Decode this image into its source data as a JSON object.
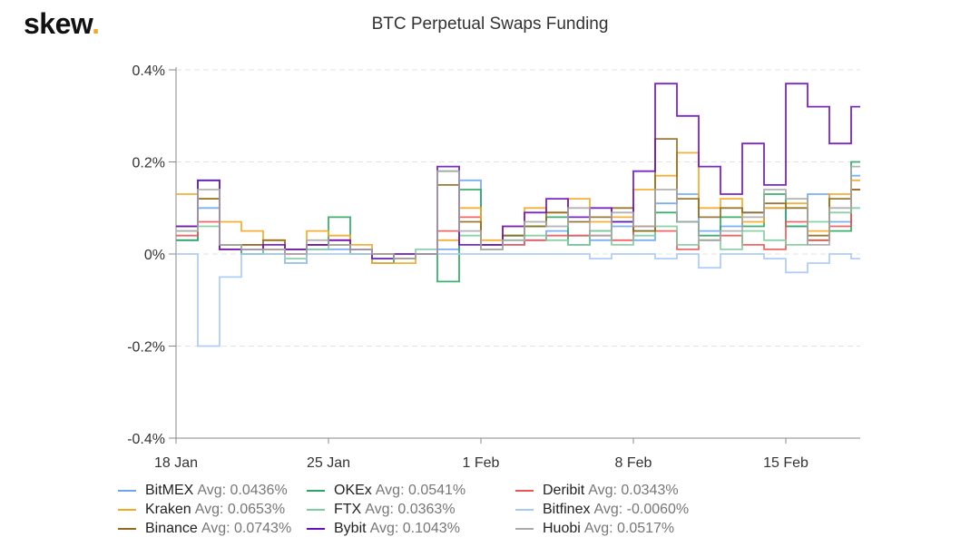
{
  "logo": {
    "text": "skew",
    "dot": "."
  },
  "chart_data": {
    "type": "line",
    "step": true,
    "title": "BTC Perpetual Swaps Funding",
    "xlabel": "",
    "ylabel": "",
    "ylim": [
      -0.4,
      0.4
    ],
    "yticks": [
      -0.4,
      -0.2,
      0,
      0.2,
      0.4
    ],
    "ytick_labels": [
      "-0.4%",
      "-0.2%",
      "0%",
      "0.2%",
      "0.4%"
    ],
    "xtick_labels": [
      "18 Jan",
      "25 Jan",
      "1 Feb",
      "8 Feb",
      "15 Feb"
    ],
    "xtick_index": [
      0,
      7,
      14,
      21,
      28
    ],
    "grid": true,
    "legend_placement": "bottom",
    "x": [
      "18 Jan",
      "19 Jan",
      "20 Jan",
      "21 Jan",
      "22 Jan",
      "23 Jan",
      "24 Jan",
      "25 Jan",
      "26 Jan",
      "27 Jan",
      "28 Jan",
      "29 Jan",
      "30 Jan",
      "31 Jan",
      "1 Feb",
      "2 Feb",
      "3 Feb",
      "4 Feb",
      "5 Feb",
      "6 Feb",
      "7 Feb",
      "8 Feb",
      "9 Feb",
      "10 Feb",
      "11 Feb",
      "12 Feb",
      "13 Feb",
      "14 Feb",
      "15 Feb",
      "16 Feb",
      "17 Feb",
      "18 Feb"
    ],
    "series": [
      {
        "name": "BitMEX",
        "avg": "Avg: 0.0436%",
        "color": "#6ea6f5",
        "values": [
          0.03,
          0.1,
          0.01,
          0.01,
          0.01,
          0.01,
          0.01,
          0.01,
          0.01,
          0.0,
          -0.01,
          0.0,
          0.01,
          0.16,
          0.01,
          0.02,
          0.03,
          0.05,
          0.04,
          0.03,
          0.06,
          0.03,
          0.11,
          0.13,
          0.05,
          0.06,
          0.09,
          0.1,
          0.06,
          0.13,
          0.07,
          0.17
        ]
      },
      {
        "name": "OKEx",
        "avg": "Avg: 0.0541%",
        "color": "#2aa660",
        "values": [
          0.03,
          0.16,
          0.02,
          0.0,
          0.01,
          -0.02,
          0.02,
          0.08,
          0.0,
          -0.02,
          -0.01,
          0.0,
          -0.06,
          0.14,
          0.02,
          0.04,
          0.06,
          0.08,
          0.02,
          0.05,
          0.07,
          0.05,
          0.09,
          0.07,
          0.04,
          0.08,
          0.06,
          0.13,
          0.06,
          0.03,
          0.05,
          0.2
        ]
      },
      {
        "name": "Deribit",
        "avg": "Avg: 0.0343%",
        "color": "#f05555",
        "values": [
          0.04,
          0.07,
          0.01,
          0.02,
          0.01,
          0.0,
          0.02,
          0.03,
          0.0,
          0.0,
          -0.01,
          0.0,
          0.05,
          0.08,
          0.01,
          0.02,
          0.03,
          0.04,
          0.04,
          0.04,
          0.03,
          0.06,
          0.05,
          0.01,
          0.03,
          0.04,
          0.02,
          0.01,
          0.07,
          0.03,
          0.06,
          0.14
        ]
      },
      {
        "name": "Kraken",
        "avg": "Avg: 0.0653%",
        "color": "#f5a623",
        "values": [
          0.13,
          0.12,
          0.07,
          0.05,
          0.03,
          0.01,
          0.05,
          0.04,
          0.02,
          -0.02,
          -0.02,
          0.0,
          0.03,
          0.1,
          0.03,
          0.06,
          0.1,
          0.09,
          0.12,
          0.07,
          0.08,
          0.14,
          0.17,
          0.22,
          0.1,
          0.12,
          0.07,
          0.1,
          0.11,
          0.05,
          0.13,
          0.16
        ]
      },
      {
        "name": "FTX",
        "avg": "Avg: 0.0363%",
        "color": "#7fcca0",
        "values": [
          0.05,
          0.06,
          0.02,
          0.01,
          0.0,
          -0.01,
          0.01,
          0.02,
          0.0,
          -0.01,
          -0.01,
          0.01,
          0.18,
          0.04,
          0.01,
          0.03,
          0.04,
          0.03,
          0.02,
          0.05,
          0.02,
          0.04,
          0.06,
          0.02,
          0.03,
          0.01,
          0.05,
          0.03,
          0.02,
          0.07,
          0.09,
          0.1
        ]
      },
      {
        "name": "Bitfinex",
        "avg": "Avg: -0.0060%",
        "color": "#a8c8f8",
        "values": [
          0.0,
          -0.2,
          -0.05,
          0.0,
          0.0,
          -0.02,
          0.0,
          0.0,
          0.0,
          0.0,
          0.0,
          0.0,
          0.0,
          0.0,
          0.0,
          0.0,
          0.0,
          0.0,
          0.0,
          -0.01,
          0.0,
          0.0,
          -0.01,
          0.0,
          -0.03,
          0.0,
          0.0,
          -0.01,
          -0.04,
          -0.02,
          0.0,
          -0.01
        ]
      },
      {
        "name": "Binance",
        "avg": "Avg: 0.0743%",
        "color": "#8f6a1f",
        "values": [
          0.06,
          0.12,
          0.02,
          0.02,
          0.03,
          0.01,
          0.02,
          0.02,
          0.01,
          0.0,
          -0.01,
          0.0,
          0.15,
          0.07,
          0.02,
          0.04,
          0.06,
          0.09,
          0.07,
          0.08,
          0.1,
          0.05,
          0.25,
          0.12,
          0.08,
          0.1,
          0.09,
          0.11,
          0.1,
          0.04,
          0.12,
          0.14
        ]
      },
      {
        "name": "Bybit",
        "avg": "Avg: 0.1043%",
        "color": "#6a0fbf",
        "values": [
          0.06,
          0.16,
          0.01,
          0.01,
          0.02,
          0.01,
          0.02,
          0.03,
          0.01,
          -0.01,
          0.0,
          0.0,
          0.19,
          0.02,
          0.02,
          0.06,
          0.09,
          0.12,
          0.08,
          0.1,
          0.07,
          0.18,
          0.37,
          0.3,
          0.19,
          0.13,
          0.24,
          0.15,
          0.37,
          0.32,
          0.24,
          0.32
        ]
      },
      {
        "name": "Huobi",
        "avg": "Avg: 0.0517%",
        "color": "#aaaaaa",
        "values": [
          0.05,
          0.14,
          0.02,
          0.01,
          0.01,
          0.0,
          0.03,
          0.02,
          0.01,
          0.0,
          -0.01,
          0.0,
          0.18,
          0.05,
          0.01,
          0.03,
          0.07,
          0.06,
          0.1,
          0.04,
          0.09,
          0.06,
          0.14,
          0.07,
          0.03,
          0.05,
          0.08,
          0.14,
          0.12,
          0.02,
          0.1,
          0.19
        ]
      }
    ]
  }
}
